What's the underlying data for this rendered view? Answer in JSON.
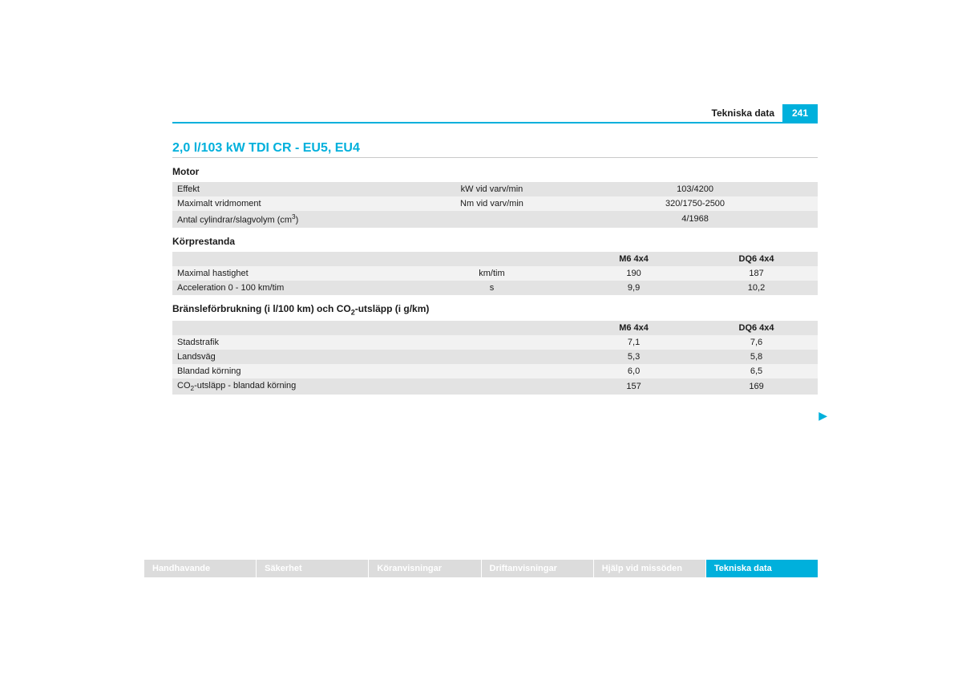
{
  "colors": {
    "accent": "#00b0dc",
    "row_a": "#e3e3e3",
    "row_b": "#f2f2f2",
    "tab_inactive_bg": "#dcdcdc",
    "tab_text": "#ffffff",
    "page_bg": "#ffffff",
    "text": "#1a1a1a"
  },
  "header": {
    "breadcrumb": "Tekniska data",
    "page_number": "241"
  },
  "title": "2,0 l/103 kW TDI CR - EU5, EU4",
  "sections": {
    "motor": {
      "label": "Motor",
      "rows": [
        {
          "label": "Effekt",
          "unit": "kW vid varv/min",
          "value": "103/4200"
        },
        {
          "label": "Maximalt vridmoment",
          "unit": "Nm vid varv/min",
          "value": "320/1750-2500"
        },
        {
          "label_html": "Antal cylindrar/slagvolym (cm<sup>3</sup>)",
          "label_plain": "Antal cylindrar/slagvolym (cm3)",
          "unit": "",
          "value": "4/1968"
        }
      ]
    },
    "performance": {
      "label": "Körprestanda",
      "columns": [
        "",
        "",
        "M6 4x4",
        "DQ6 4x4"
      ],
      "rows": [
        {
          "label": "Maximal hastighet",
          "unit": "km/tim",
          "v1": "190",
          "v2": "187"
        },
        {
          "label": "Acceleration 0 - 100 km/tim",
          "unit": "s",
          "v1": "9,9",
          "v2": "10,2"
        }
      ]
    },
    "fuel": {
      "label_html": "Bränsleförbrukning (i l/100 km) och CO<sub>2</sub>-utsläpp (i g/km)",
      "label_plain": "Bränsleförbrukning (i l/100 km) och CO2-utsläpp (i g/km)",
      "columns": [
        "",
        "M6 4x4",
        "DQ6 4x4"
      ],
      "rows": [
        {
          "label": "Stadstrafik",
          "v1": "7,1",
          "v2": "7,6"
        },
        {
          "label": "Landsväg",
          "v1": "5,3",
          "v2": "5,8"
        },
        {
          "label": "Blandad körning",
          "v1": "6,0",
          "v2": "6,5"
        },
        {
          "label_html": "CO<sub>2</sub>-utsläpp - blandad körning",
          "label_plain": "CO2-utsläpp - blandad körning",
          "v1": "157",
          "v2": "169"
        }
      ]
    }
  },
  "tabs": [
    {
      "label": "Handhavande",
      "active": false
    },
    {
      "label": "Säkerhet",
      "active": false
    },
    {
      "label": "Köranvisningar",
      "active": false
    },
    {
      "label": "Driftanvisningar",
      "active": false
    },
    {
      "label": "Hjälp vid missöden",
      "active": false
    },
    {
      "label": "Tekniska data",
      "active": true
    }
  ],
  "next_arrow": "▶"
}
